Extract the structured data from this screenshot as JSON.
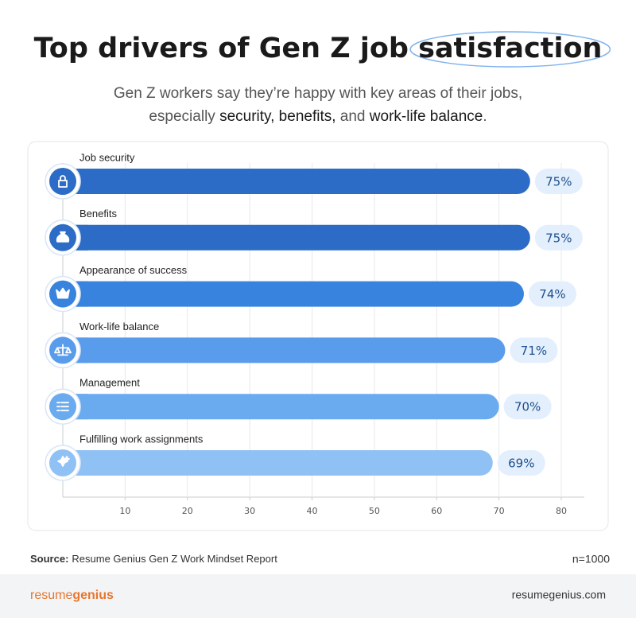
{
  "chart_data": {
    "type": "bar",
    "orientation": "horizontal",
    "title_parts": [
      "Top drivers of Gen Z job ",
      "satisfaction"
    ],
    "subtitle_line1": "Gen Z workers say they’re happy with key areas of their jobs,",
    "subtitle_line2_parts": [
      "especially ",
      "security, benefits,",
      " and ",
      "work-life balance",
      "."
    ],
    "categories": [
      "Job security",
      "Benefits",
      "Appearance of success",
      "Work-life balance",
      "Management",
      "Fulfilling work assignments"
    ],
    "values": [
      75,
      75,
      74,
      71,
      70,
      69
    ],
    "value_labels": [
      "75%",
      "75%",
      "74%",
      "71%",
      "70%",
      "69%"
    ],
    "colors": [
      "#2c6cc6",
      "#2c6cc6",
      "#3883dd",
      "#5a9cec",
      "#6aabf0",
      "#90c1f5"
    ],
    "xlim": [
      0,
      83.7
    ],
    "xticks": [
      10,
      20,
      30,
      40,
      50,
      60,
      70,
      80
    ],
    "grid": true,
    "source_label": "Source:",
    "source": "Resume Genius Gen Z Work Mindset Report",
    "sample": "n=1000",
    "brand_parts": [
      "resume",
      "genius"
    ],
    "website": "resumegenius.com"
  }
}
